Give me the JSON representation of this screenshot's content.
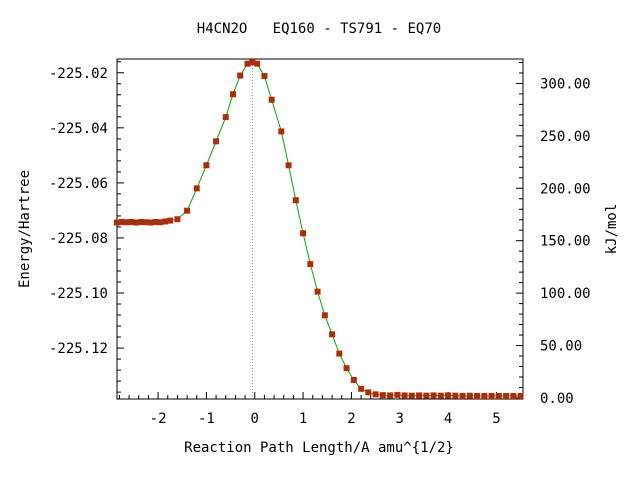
{
  "chart_data": {
    "type": "line",
    "title": "H4CN2O   EQ160 - TS791 - EQ70",
    "xlabel": "Reaction Path Length/A amu^{1/2}",
    "ylabel": "Energy/Hartree",
    "y2label": "kJ/mol",
    "xlim": [
      -2.85,
      5.55
    ],
    "ylim": [
      -225.1385,
      -225.015
    ],
    "y2lim": [
      -1.0,
      323.3
    ],
    "x_ticks": [
      -2,
      -1,
      0,
      1,
      2,
      3,
      4,
      5
    ],
    "y_ticks": [
      -225.12,
      -225.1,
      -225.08,
      -225.06,
      -225.04,
      -225.02
    ],
    "y2_ticks": [
      "0.00",
      "50.00",
      "100.00",
      "150.00",
      "200.00",
      "250.00",
      "300.00"
    ],
    "ts_marker_x": -0.05,
    "grid": false,
    "colors": {
      "curve": "#00aa00",
      "points": "#cc2200",
      "point_fill": "#8b3a1a",
      "ts_line": "#888888"
    },
    "series": [
      {
        "x": [
          -2.85,
          -2.75,
          -2.65,
          -2.55,
          -2.45,
          -2.35,
          -2.25,
          -2.15,
          -2.05,
          -1.95,
          -1.85,
          -1.75,
          -1.6,
          -1.4,
          -1.2,
          -1.0,
          -0.8,
          -0.6,
          -0.45,
          -0.3,
          -0.15,
          -0.05,
          0.05,
          0.2,
          0.35,
          0.55,
          0.7,
          0.85,
          1.0,
          1.15,
          1.3,
          1.45,
          1.6,
          1.75,
          1.9,
          2.05,
          2.2,
          2.35,
          2.5,
          2.65,
          2.8,
          2.95,
          3.1,
          3.25,
          3.4,
          3.55,
          3.7,
          3.85,
          4.0,
          4.15,
          4.3,
          4.45,
          4.6,
          4.75,
          4.9,
          5.05,
          5.2,
          5.35,
          5.5
        ],
        "y": [
          -225.0744,
          -225.0742,
          -225.0743,
          -225.0742,
          -225.0744,
          -225.0742,
          -225.0743,
          -225.0744,
          -225.0742,
          -225.0743,
          -225.074,
          -225.0737,
          -225.0732,
          -225.0701,
          -225.062,
          -225.0536,
          -225.0449,
          -225.0361,
          -225.0278,
          -225.021,
          -225.0167,
          -225.0162,
          -225.0167,
          -225.0212,
          -225.0298,
          -225.0413,
          -225.0536,
          -225.0663,
          -225.0783,
          -225.0895,
          -225.0995,
          -225.1081,
          -225.115,
          -225.122,
          -225.1273,
          -225.1316,
          -225.1348,
          -225.1361,
          -225.1368,
          -225.1371,
          -225.1372,
          -225.137,
          -225.1372,
          -225.1373,
          -225.1372,
          -225.1373,
          -225.1372,
          -225.1373,
          -225.1372,
          -225.1373,
          -225.1374,
          -225.1373,
          -225.1374,
          -225.1374,
          -225.1374,
          -225.1374,
          -225.1374,
          -225.1374,
          -225.1374
        ]
      }
    ]
  }
}
